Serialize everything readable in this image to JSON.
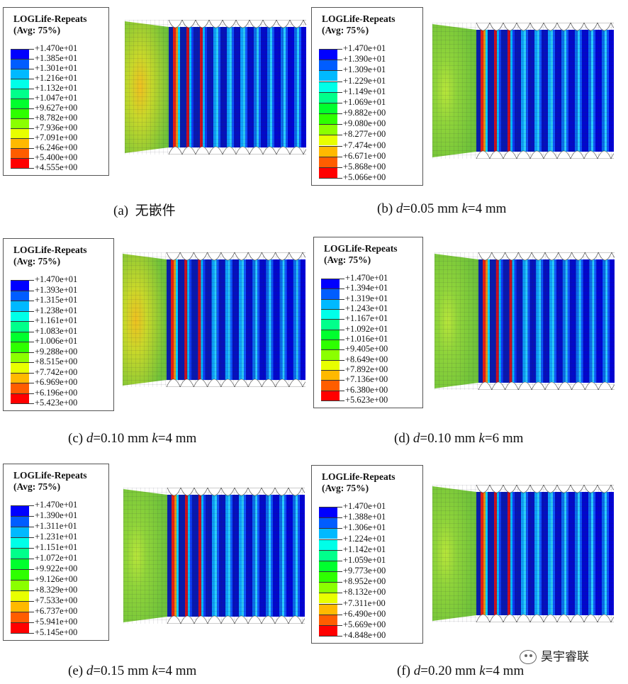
{
  "panels": [
    {
      "id": "a",
      "legend_title": "LOGLife-Repeats",
      "legend_subtitle": "(Avg: 75%)",
      "values": [
        "+1.470e+01",
        "+1.385e+01",
        "+1.301e+01",
        "+1.216e+01",
        "+1.132e+01",
        "+1.047e+01",
        "+9.627e+00",
        "+8.782e+00",
        "+7.936e+00",
        "+7.091e+00",
        "+6.246e+00",
        "+5.400e+00",
        "+4.555e+00"
      ],
      "caption_prefix": "(a)  ",
      "caption_d": "",
      "caption_d_val": "",
      "caption_k": "",
      "caption_k_val": "",
      "caption_plain": "无嵌件"
    },
    {
      "id": "b",
      "legend_title": "LOGLife-Repeats",
      "legend_subtitle": "(Avg: 75%)",
      "values": [
        "+1.470e+01",
        "+1.390e+01",
        "+1.309e+01",
        "+1.229e+01",
        "+1.149e+01",
        "+1.069e+01",
        "+9.882e+00",
        "+9.080e+00",
        "+8.277e+00",
        "+7.474e+00",
        "+6.671e+00",
        "+5.868e+00",
        "+5.066e+00"
      ],
      "caption_prefix": "(b) ",
      "caption_d": "d",
      "caption_d_val": "=0.05 mm ",
      "caption_k": "k",
      "caption_k_val": "=4 mm",
      "caption_plain": ""
    },
    {
      "id": "c",
      "legend_title": "LOGLife-Repeats",
      "legend_subtitle": "(Avg: 75%)",
      "values": [
        "+1.470e+01",
        "+1.393e+01",
        "+1.315e+01",
        "+1.238e+01",
        "+1.161e+01",
        "+1.083e+01",
        "+1.006e+01",
        "+9.288e+00",
        "+8.515e+00",
        "+7.742e+00",
        "+6.969e+00",
        "+6.196e+00",
        "+5.423e+00"
      ],
      "caption_prefix": "(c) ",
      "caption_d": "d",
      "caption_d_val": "=0.10 mm ",
      "caption_k": "k",
      "caption_k_val": "=4 mm",
      "caption_plain": ""
    },
    {
      "id": "d",
      "legend_title": "LOGLife-Repeats",
      "legend_subtitle": "(Avg: 75%)",
      "values": [
        "+1.470e+01",
        "+1.394e+01",
        "+1.319e+01",
        "+1.243e+01",
        "+1.167e+01",
        "+1.092e+01",
        "+1.016e+01",
        "+9.405e+00",
        "+8.649e+00",
        "+7.892e+00",
        "+7.136e+00",
        "+6.380e+00",
        "+5.623e+00"
      ],
      "caption_prefix": "(d) ",
      "caption_d": "d",
      "caption_d_val": "=0.10 mm ",
      "caption_k": "k",
      "caption_k_val": "=6 mm",
      "caption_plain": ""
    },
    {
      "id": "e",
      "legend_title": "LOGLife-Repeats",
      "legend_subtitle": "(Avg: 75%)",
      "values": [
        "+1.470e+01",
        "+1.390e+01",
        "+1.311e+01",
        "+1.231e+01",
        "+1.151e+01",
        "+1.072e+01",
        "+9.922e+00",
        "+9.126e+00",
        "+8.329e+00",
        "+7.533e+00",
        "+6.737e+00",
        "+5.941e+00",
        "+5.145e+00"
      ],
      "caption_prefix": "(e) ",
      "caption_d": "d",
      "caption_d_val": "=0.15 mm ",
      "caption_k": "k",
      "caption_k_val": "=4 mm",
      "caption_plain": ""
    },
    {
      "id": "f",
      "legend_title": "LOGLife-Repeats",
      "legend_subtitle": "(Avg: 75%)",
      "values": [
        "+1.470e+01",
        "+1.388e+01",
        "+1.306e+01",
        "+1.224e+01",
        "+1.142e+01",
        "+1.059e+01",
        "+9.773e+00",
        "+8.952e+00",
        "+8.132e+00",
        "+7.311e+00",
        "+6.490e+00",
        "+5.669e+00",
        "+4.848e+00"
      ],
      "caption_prefix": "(f) ",
      "caption_d": "d",
      "caption_d_val": "=0.20 mm ",
      "caption_k": "k",
      "caption_k_val": "=4 mm",
      "caption_plain": ""
    }
  ],
  "colormap": [
    "#0000ff",
    "#005dff",
    "#00b9ff",
    "#00ffe8",
    "#00ff8b",
    "#00ff2e",
    "#2eff00",
    "#8bff00",
    "#e8ff00",
    "#ffb900",
    "#ff5d00",
    "#ff0000"
  ],
  "watermark": "昊宇睿联"
}
